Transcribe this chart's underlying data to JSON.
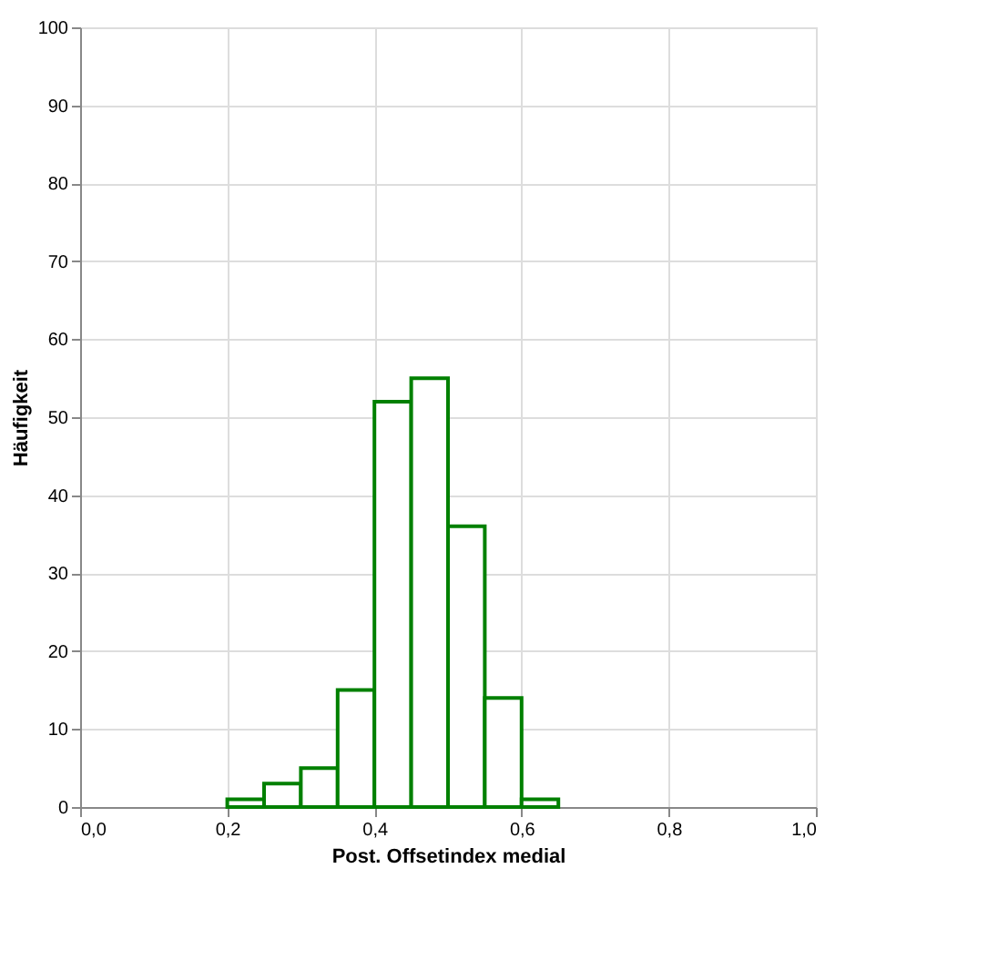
{
  "chart_data": {
    "type": "histogram",
    "xlabel": "Post. Offsetindex medial",
    "ylabel": "Häufigkeit",
    "bins": [
      0.2,
      0.25,
      0.3,
      0.35,
      0.4,
      0.45,
      0.5,
      0.55,
      0.6,
      0.65
    ],
    "values": [
      1,
      3,
      5,
      15,
      52,
      55,
      36,
      14,
      1
    ],
    "color": "#008000",
    "xlim": [
      0,
      1
    ],
    "xticks": [
      {
        "value": 0,
        "label": "0,0"
      },
      {
        "value": 0.2,
        "label": "0,2"
      },
      {
        "value": 0.4,
        "label": "0,4"
      },
      {
        "value": 0.6,
        "label": "0,6"
      },
      {
        "value": 0.8,
        "label": "0,8"
      },
      {
        "value": 1,
        "label": "1,0"
      }
    ],
    "ylim": [
      0,
      100
    ],
    "yticks": [
      0,
      10,
      20,
      30,
      40,
      50,
      60,
      70,
      80,
      90,
      100
    ],
    "grid": true
  }
}
